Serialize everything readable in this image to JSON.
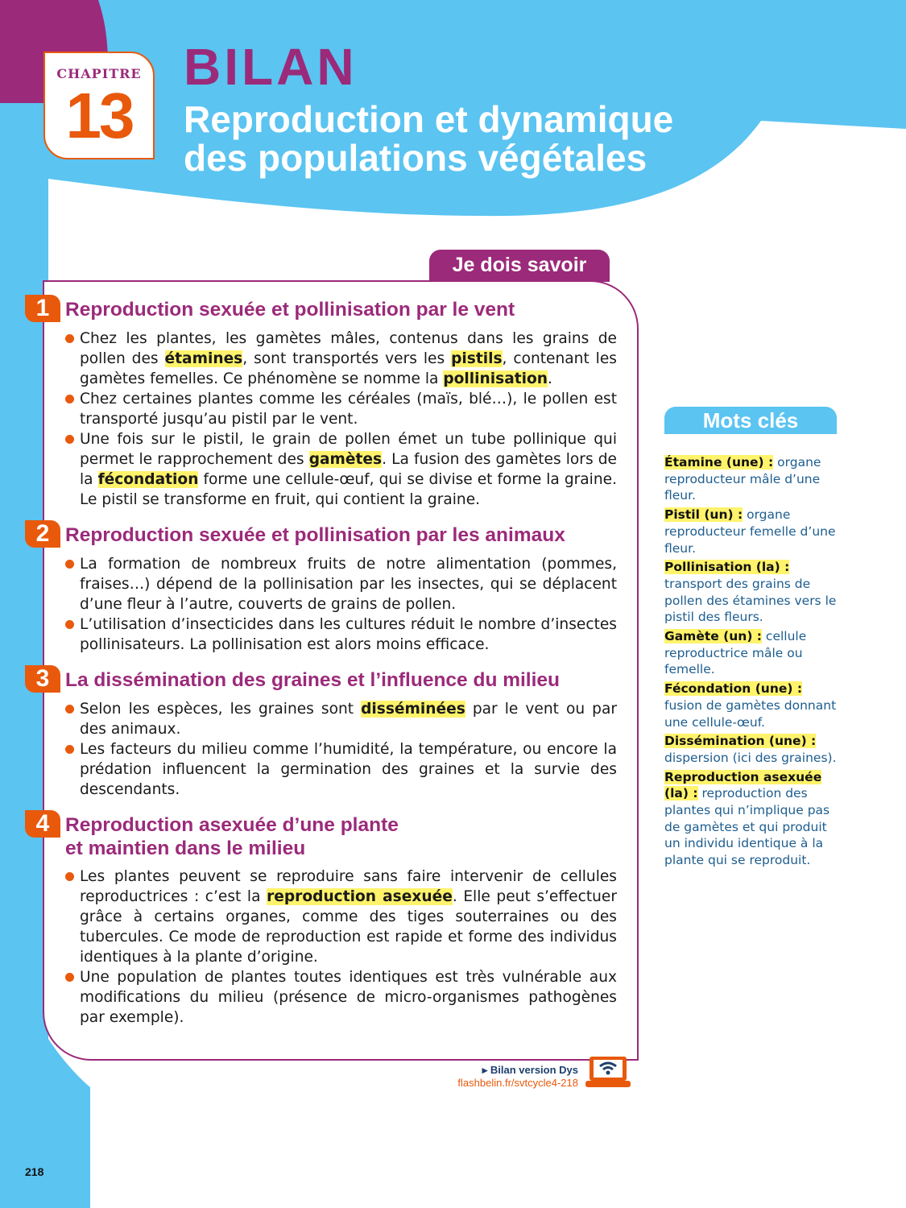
{
  "header": {
    "chapter_label": "CHAPITRE",
    "chapter_number": "13",
    "bilan": "BILAN",
    "title": "Reproduction et dynamique\ndes populations végétales"
  },
  "colors": {
    "blue": "#5bc4f1",
    "purple": "#9b2a7a",
    "orange": "#e8590c",
    "highlight": "#fff36b"
  },
  "main": {
    "tab": "Je dois savoir",
    "sections": [
      {
        "num": "1",
        "title": "Reproduction sexuée et pollinisation par le vent",
        "bullets": [
          [
            {
              "t": "Chez les plantes, les gamètes mâles, contenus dans les grains de pollen des "
            },
            {
              "t": "étamines",
              "hl": true
            },
            {
              "t": ", sont transportés vers les "
            },
            {
              "t": "pistils",
              "hl": true
            },
            {
              "t": ", contenant les gamètes femelles. Ce phénomène se nomme la "
            },
            {
              "t": "pollinisation",
              "hl": true
            },
            {
              "t": "."
            }
          ],
          [
            {
              "t": "Chez certaines plantes comme les céréales (maïs, blé…), le pollen est transporté jusqu’au pistil par le vent."
            }
          ],
          [
            {
              "t": "Une fois sur le pistil, le grain de pollen émet un tube pollinique qui permet le rapprochement des "
            },
            {
              "t": "gamètes",
              "hl": true
            },
            {
              "t": ". La fusion des gamètes lors de la "
            },
            {
              "t": "fécondation",
              "hl": true
            },
            {
              "t": " forme une cellule-œuf, qui se divise et forme la graine. Le pistil se transforme en fruit, qui contient la graine."
            }
          ]
        ]
      },
      {
        "num": "2",
        "title": "Reproduction sexuée et pollinisation par les animaux",
        "bullets": [
          [
            {
              "t": "La formation de nombreux fruits de notre alimentation (pommes, fraises…) dépend de la pollinisation par les insectes, qui se déplacent d’une fleur à l’autre, couverts de grains de pollen."
            }
          ],
          [
            {
              "t": "L’utilisation d’insecticides dans les cultures réduit le nombre d’insectes pollinisateurs. La pollinisation est alors moins efficace."
            }
          ]
        ]
      },
      {
        "num": "3",
        "title": "La dissémination des graines et l’influence du milieu",
        "bullets": [
          [
            {
              "t": "Selon les espèces, les graines sont "
            },
            {
              "t": "disséminées",
              "hl": true
            },
            {
              "t": " par le vent ou par des animaux."
            }
          ],
          [
            {
              "t": "Les facteurs du milieu comme l’humidité, la température, ou encore la prédation influencent la germination des graines et la survie des descendants."
            }
          ]
        ]
      },
      {
        "num": "4",
        "title": "Reproduction asexuée d’une plante\net maintien dans le milieu",
        "bullets": [
          [
            {
              "t": "Les plantes peuvent se reproduire sans faire intervenir de cellules reproductrices : c’est la "
            },
            {
              "t": "reproduction asexuée",
              "hl": true
            },
            {
              "t": ". Elle peut s’effectuer grâce à certains organes, comme des tiges souterraines ou des tubercules. Ce mode de reproduction est rapide et forme des individus identiques à la plante d’origine."
            }
          ],
          [
            {
              "t": "Une population de plantes toutes identiques est très vulnérable aux modifications du milieu (présence de micro-organismes pathogènes par exemple)."
            }
          ]
        ]
      }
    ]
  },
  "keywords": {
    "title": "Mots clés",
    "items": [
      {
        "term": "Étamine (une) :",
        "def": " organe reproducteur mâle d’une fleur."
      },
      {
        "term": "Pistil (un) :",
        "def": " organe reproducteur femelle d’une fleur."
      },
      {
        "term": "Pollinisation (la) :",
        "def": " transport des grains de pollen des étamines vers le pistil des fleurs."
      },
      {
        "term": "Gamète (un) :",
        "def": " cellule reproductrice mâle ou femelle."
      },
      {
        "term": "Fécondation (une) :",
        "def": " fusion de gamètes donnant une cellule-œuf."
      },
      {
        "term": "Dissémination (une) :",
        "def": " dispersion (ici des graines)."
      },
      {
        "term": "Reproduction asexuée (la) :",
        "def": " reproduction des plantes qui n’implique pas de gamètes et qui produit un individu identique à la plante qui se reproduit."
      }
    ]
  },
  "footer": {
    "dys_label": "▸ Bilan version Dys",
    "dys_link": "flashbelin.fr/svtcycle4-218",
    "page_number": "218",
    "icon": "laptop-wifi-icon"
  }
}
